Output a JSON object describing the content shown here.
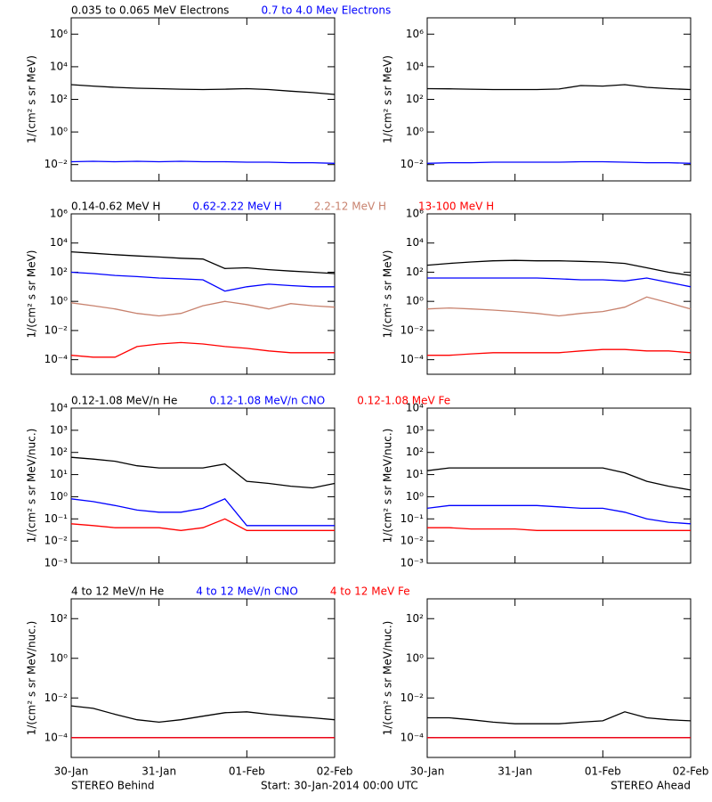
{
  "x_axis": {
    "x": [
      0,
      0.25,
      0.5,
      0.75,
      1,
      1.25,
      1.5,
      1.75,
      2,
      2.25,
      2.5,
      2.75,
      3
    ],
    "xlim": [
      0,
      3
    ],
    "xticks": [
      {
        "value": 0,
        "label": "30-Jan"
      },
      {
        "value": 1,
        "label": "31-Jan"
      },
      {
        "value": 2,
        "label": "01-Feb"
      },
      {
        "value": 3,
        "label": "02-Feb"
      }
    ]
  },
  "spacecraft": [
    "STEREO Behind",
    "STEREO Ahead"
  ],
  "start": "Start: 30-Jan-2014 00:00 UTC",
  "chart_data": [
    {
      "type": "line",
      "ylog": true,
      "ylabel": "1/(cm² s sr MeV)",
      "ylim": [
        0.001,
        10000000
      ],
      "yticks": [
        {
          "value": 0.01,
          "label": "10⁻²"
        },
        {
          "value": 1,
          "label": "10⁰"
        },
        {
          "value": 100,
          "label": "10²"
        },
        {
          "value": 10000,
          "label": "10⁴"
        },
        {
          "value": 1000000,
          "label": "10⁶"
        }
      ],
      "series": [
        {
          "name": "0.035 to 0.065 MeV Electrons",
          "color": "#000000",
          "values": [
            [
              800,
              650,
              550,
              480,
              450,
              420,
              400,
              420,
              450,
              400,
              320,
              260,
              200
            ],
            [
              450,
              440,
              420,
              400,
              400,
              400,
              430,
              700,
              650,
              800,
              550,
              450,
              400
            ]
          ]
        },
        {
          "name": "0.7 to 4.0 Mev Electrons",
          "color": "#0000ff",
          "values": [
            [
              0.015,
              0.016,
              0.015,
              0.016,
              0.015,
              0.016,
              0.015,
              0.015,
              0.014,
              0.014,
              0.013,
              0.013,
              0.012
            ],
            [
              0.012,
              0.013,
              0.013,
              0.014,
              0.014,
              0.014,
              0.014,
              0.015,
              0.015,
              0.014,
              0.013,
              0.013,
              0.012
            ]
          ]
        }
      ]
    },
    {
      "type": "line",
      "ylog": true,
      "ylabel": "1/(cm² s sr MeV)",
      "ylim": [
        1e-05,
        1000000
      ],
      "yticks": [
        {
          "value": 0.0001,
          "label": "10⁻⁴"
        },
        {
          "value": 0.01,
          "label": "10⁻²"
        },
        {
          "value": 1,
          "label": "10⁰"
        },
        {
          "value": 100,
          "label": "10²"
        },
        {
          "value": 10000,
          "label": "10⁴"
        },
        {
          "value": 1000000,
          "label": "10⁶"
        }
      ],
      "series": [
        {
          "name": "0.14-0.62 MeV H",
          "color": "#000000",
          "values": [
            [
              2500,
              2000,
              1600,
              1300,
              1100,
              900,
              800,
              180,
              200,
              150,
              120,
              100,
              80
            ],
            [
              300,
              400,
              500,
              600,
              650,
              600,
              600,
              550,
              500,
              400,
              200,
              100,
              60
            ]
          ]
        },
        {
          "name": "0.62-2.22 MeV H",
          "color": "#0000ff",
          "values": [
            [
              100,
              80,
              60,
              50,
              40,
              35,
              30,
              5,
              10,
              15,
              12,
              10,
              10
            ],
            [
              40,
              40,
              40,
              40,
              40,
              40,
              35,
              30,
              30,
              25,
              40,
              20,
              10
            ]
          ]
        },
        {
          "name": "2.2-12 MeV H",
          "color": "#c8826e",
          "values": [
            [
              0.8,
              0.5,
              0.3,
              0.15,
              0.1,
              0.15,
              0.5,
              1,
              0.6,
              0.3,
              0.7,
              0.5,
              0.4
            ],
            [
              0.3,
              0.35,
              0.3,
              0.25,
              0.2,
              0.15,
              0.1,
              0.15,
              0.2,
              0.4,
              2,
              0.8,
              0.3
            ]
          ]
        },
        {
          "name": "13-100 MeV H",
          "color": "#ff0000",
          "values": [
            [
              0.0002,
              0.00015,
              0.00015,
              0.0008,
              0.0012,
              0.0015,
              0.0012,
              0.0008,
              0.0006,
              0.0004,
              0.0003,
              0.0003,
              0.0003
            ],
            [
              0.0002,
              0.0002,
              0.00025,
              0.0003,
              0.0003,
              0.0003,
              0.0003,
              0.0004,
              0.0005,
              0.0005,
              0.0004,
              0.0004,
              0.0003
            ]
          ]
        }
      ]
    },
    {
      "type": "line",
      "ylog": true,
      "ylabel": "1/(cm² s sr MeV/nuc.)",
      "ylim": [
        0.001,
        10000
      ],
      "yticks": [
        {
          "value": 0.001,
          "label": "10⁻³"
        },
        {
          "value": 0.01,
          "label": "10⁻²"
        },
        {
          "value": 0.1,
          "label": "10⁻¹"
        },
        {
          "value": 1,
          "label": "10⁰"
        },
        {
          "value": 10,
          "label": "10¹"
        },
        {
          "value": 100,
          "label": "10²"
        },
        {
          "value": 1000,
          "label": "10³"
        },
        {
          "value": 10000,
          "label": "10⁴"
        }
      ],
      "series": [
        {
          "name": "0.12-1.08 MeV/n He",
          "color": "#000000",
          "values": [
            [
              60,
              50,
              40,
              25,
              20,
              20,
              20,
              30,
              5,
              4,
              3,
              2.5,
              4
            ],
            [
              15,
              20,
              20,
              20,
              20,
              20,
              20,
              20,
              20,
              12,
              5,
              3,
              2
            ]
          ]
        },
        {
          "name": "0.12-1.08 MeV/n CNO",
          "color": "#0000ff",
          "values": [
            [
              0.8,
              0.6,
              0.4,
              0.25,
              0.2,
              0.2,
              0.3,
              0.8,
              0.05,
              0.05,
              0.05,
              0.05,
              0.05
            ],
            [
              0.3,
              0.4,
              0.4,
              0.4,
              0.4,
              0.4,
              0.35,
              0.3,
              0.3,
              0.2,
              0.1,
              0.07,
              0.06
            ]
          ]
        },
        {
          "name": "0.12-1.08 MeV Fe",
          "color": "#ff0000",
          "values": [
            [
              0.06,
              0.05,
              0.04,
              0.04,
              0.04,
              0.03,
              0.04,
              0.1,
              0.03,
              0.03,
              0.03,
              0.03,
              0.03
            ],
            [
              0.04,
              0.04,
              0.035,
              0.035,
              0.035,
              0.03,
              0.03,
              0.03,
              0.03,
              0.03,
              0.03,
              0.03,
              0.03
            ]
          ]
        }
      ]
    },
    {
      "type": "line",
      "ylog": true,
      "ylabel": "1/(cm² s sr MeV/nuc.)",
      "ylim": [
        1e-05,
        1000
      ],
      "yticks": [
        {
          "value": 0.0001,
          "label": "10⁻⁴"
        },
        {
          "value": 0.01,
          "label": "10⁻²"
        },
        {
          "value": 1,
          "label": "10⁰"
        },
        {
          "value": 100,
          "label": "10²"
        }
      ],
      "series": [
        {
          "name": "4 to 12 MeV/n He",
          "color": "#000000",
          "values": [
            [
              0.004,
              0.003,
              0.0015,
              0.0008,
              0.0006,
              0.0008,
              0.0012,
              0.0018,
              0.002,
              0.0015,
              0.0012,
              0.001,
              0.0008
            ],
            [
              0.001,
              0.001,
              0.0008,
              0.0006,
              0.0005,
              0.0005,
              0.0005,
              0.0006,
              0.0007,
              0.002,
              0.001,
              0.0008,
              0.0007
            ]
          ]
        },
        {
          "name": "4 to 12 MeV/n CNO",
          "color": "#0000ff",
          "values": [
            [
              0.0001,
              0.0001,
              0.0001,
              0.0001,
              0.0001,
              0.0001,
              0.0001,
              0.0001,
              0.0001,
              0.0001,
              0.0001,
              0.0001,
              0.0001
            ],
            [
              0.0001,
              0.0001,
              0.0001,
              0.0001,
              0.0001,
              0.0001,
              0.0001,
              0.0001,
              0.0001,
              0.0001,
              0.0001,
              0.0001,
              0.0001
            ]
          ]
        },
        {
          "name": "4 to 12 MeV Fe",
          "color": "#ff0000",
          "values": [
            [
              0.0001,
              0.0001,
              0.0001,
              0.0001,
              0.0001,
              0.0001,
              0.0001,
              0.0001,
              0.0001,
              0.0001,
              0.0001,
              0.0001,
              0.0001
            ],
            [
              0.0001,
              0.0001,
              0.0001,
              0.0001,
              0.0001,
              0.0001,
              0.0001,
              0.0001,
              0.0001,
              0.0001,
              0.0001,
              0.0001,
              0.0001
            ]
          ]
        }
      ]
    }
  ]
}
